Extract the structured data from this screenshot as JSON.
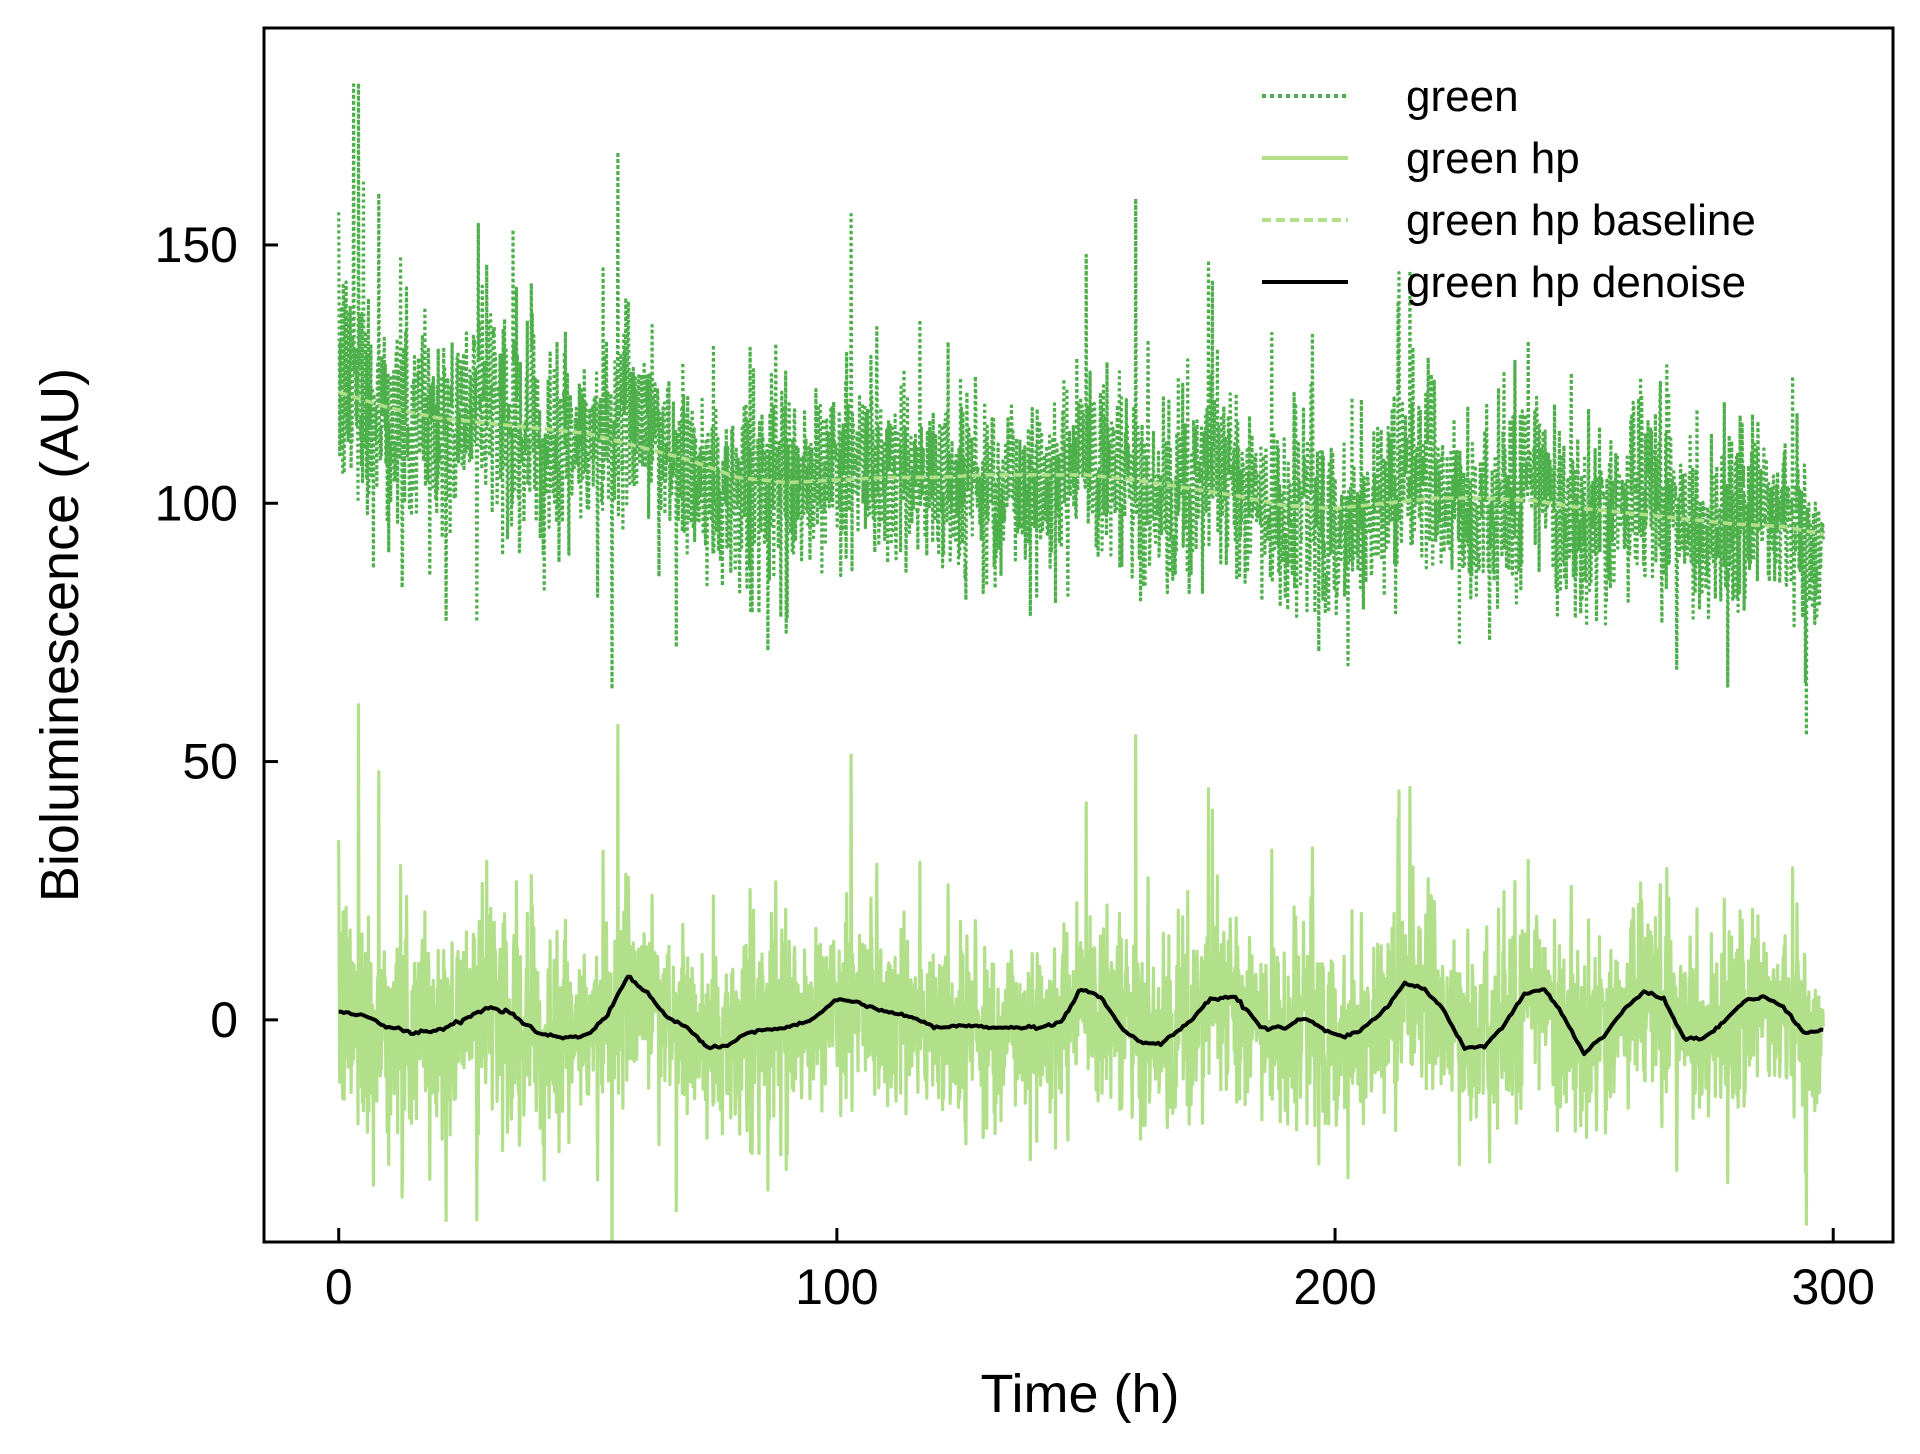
{
  "chart_data": {
    "type": "line",
    "xlabel": "Time (h)",
    "ylabel": "Bioluminescence (AU)",
    "xlim": [
      -15,
      312
    ],
    "ylim": [
      -43,
      192
    ],
    "xticks": [
      0,
      100,
      200,
      300
    ],
    "yticks": [
      0,
      50,
      100,
      150
    ],
    "grid": false,
    "legend_position": "top-right",
    "series": [
      {
        "name": "green",
        "style": "dotted",
        "color": "#4daf4a",
        "description_of_shape": "noisy signal fluctuating about a baseline that declines from ~121 to ~94, peaks up to ~181",
        "peaks": [
          [
            3,
            181
          ],
          [
            56,
            168
          ],
          [
            160,
            159
          ],
          [
            150,
            148
          ],
          [
            215,
            145
          ],
          [
            5,
            162
          ],
          [
            8,
            160
          ],
          [
            28,
            154
          ],
          [
            35,
            153
          ],
          [
            108,
            134
          ],
          [
            175,
            125
          ]
        ]
      },
      {
        "name": "green hp",
        "style": "solid",
        "color": "#b2df8a",
        "description_of_shape": "high-passed noisy signal centered on 0, peaks up to ~61, troughs down to ~-32",
        "peaks": [
          [
            4,
            61
          ],
          [
            56,
            57
          ],
          [
            160,
            55
          ],
          [
            215,
            45
          ],
          [
            150,
            42
          ],
          [
            8,
            48
          ]
        ],
        "troughs": [
          [
            7,
            -32
          ],
          [
            52,
            -31
          ],
          [
            10,
            -28
          ],
          [
            225,
            -28
          ],
          [
            90,
            -26
          ]
        ]
      },
      {
        "name": "green hp baseline",
        "style": "dashed",
        "color": "#b2df8a",
        "x": [
          0,
          10,
          20,
          30,
          40,
          50,
          60,
          70,
          80,
          90,
          100,
          110,
          120,
          130,
          140,
          150,
          160,
          170,
          180,
          190,
          200,
          210,
          220,
          230,
          240,
          250,
          260,
          270,
          280,
          290,
          298
        ],
        "y": [
          121.5,
          118.5,
          116.5,
          115.5,
          114.5,
          113.5,
          111,
          108.5,
          105,
          104,
          104.5,
          105,
          105,
          105.5,
          105.5,
          105.5,
          104.5,
          103,
          101.5,
          99.5,
          99,
          100,
          101,
          101,
          100.5,
          99,
          98,
          97,
          96,
          95.5,
          94
        ]
      },
      {
        "name": "green hp denoise",
        "style": "solid",
        "color": "#000000",
        "x": [
          0,
          5,
          10,
          15,
          20,
          25,
          30,
          35,
          40,
          45,
          50,
          54,
          58,
          62,
          66,
          70,
          74,
          78,
          82,
          86,
          90,
          95,
          100,
          104,
          108,
          115,
          120,
          125,
          130,
          135,
          140,
          145,
          149,
          153,
          157,
          161,
          165,
          170,
          175,
          180,
          185,
          190,
          194,
          198,
          202,
          206,
          210,
          214,
          218,
          222,
          226,
          230,
          234,
          238,
          242,
          246,
          250,
          254,
          258,
          262,
          266,
          270,
          274,
          278,
          282,
          286,
          290,
          294,
          298
        ],
        "y": [
          1.5,
          1,
          -1.5,
          -2.5,
          -2,
          0,
          2.5,
          1,
          -2.5,
          -3.5,
          -3,
          1,
          8.5,
          5,
          0.5,
          -1.5,
          -5.5,
          -5,
          -2.5,
          -2,
          -1.5,
          0,
          4,
          3.5,
          2,
          0.5,
          -1.5,
          -1,
          -1.5,
          -1.5,
          -1.5,
          -0.5,
          6,
          4.5,
          -1.5,
          -4.5,
          -4.5,
          -1,
          4,
          4.5,
          -1.5,
          -1.5,
          0.5,
          -2,
          -3.5,
          -1.5,
          2,
          7,
          6,
          1.5,
          -5.5,
          -5,
          -1,
          5,
          6,
          0.5,
          -6.5,
          -3,
          2,
          5.5,
          4,
          -3.5,
          -3.5,
          -0.5,
          3.5,
          4.5,
          2.5,
          -2.5,
          -2
        ]
      }
    ]
  }
}
